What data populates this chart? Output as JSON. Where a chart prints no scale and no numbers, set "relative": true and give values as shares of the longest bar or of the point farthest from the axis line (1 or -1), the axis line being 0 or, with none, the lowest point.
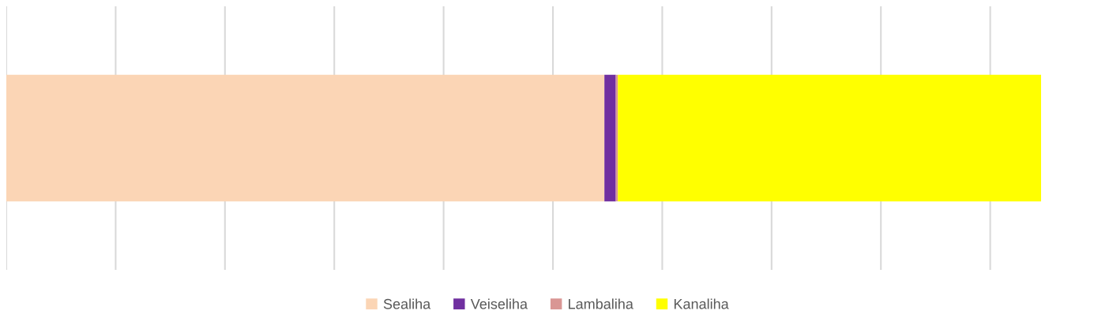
{
  "chart_data": {
    "type": "bar",
    "orientation": "horizontal",
    "stacked": true,
    "relative": true,
    "categories": [
      null
    ],
    "grid": "x",
    "legend": "bottom",
    "tick_labels": false,
    "series": [
      {
        "name": "Sealiha",
        "color": "#fbd5b5",
        "values": [
          0.578
        ]
      },
      {
        "name": "Veiseliha",
        "color": "#7030a0",
        "values": [
          0.011
        ]
      },
      {
        "name": "Lambaliha",
        "color": "#d99694",
        "values": [
          0.002
        ]
      },
      {
        "name": "Kanaliha",
        "color": "#ffff00",
        "values": [
          0.409
        ]
      }
    ]
  }
}
